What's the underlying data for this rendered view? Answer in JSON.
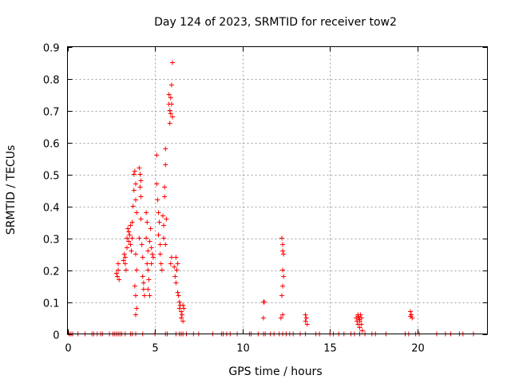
{
  "chart_data": {
    "type": "scatter",
    "title": "Day 124 of 2023, SRMTID for receiver tow2",
    "xlabel": "GPS time / hours",
    "ylabel": "SRMTID / TECUs",
    "xlim": [
      0,
      24
    ],
    "ylim": [
      0,
      0.9
    ],
    "xticks": [
      0,
      5,
      10,
      15,
      20
    ],
    "yticks": [
      0,
      0.1,
      0.2,
      0.3,
      0.4,
      0.5,
      0.6,
      0.7,
      0.8,
      0.9
    ],
    "xtick_labels": [
      "0",
      "5",
      "10",
      "15",
      "20"
    ],
    "ytick_labels": [
      "0",
      "0.1",
      "0.2",
      "0.3",
      "0.4",
      "0.5",
      "0.6",
      "0.7",
      "0.8",
      "0.9"
    ],
    "grid": true,
    "marker": "plus",
    "color": "#ff0000",
    "series": [
      {
        "name": "SRMTID",
        "points": [
          [
            0.1,
            0
          ],
          [
            0.2,
            0
          ],
          [
            0.3,
            0
          ],
          [
            0.6,
            0
          ],
          [
            1.0,
            0
          ],
          [
            1.4,
            0
          ],
          [
            1.5,
            0
          ],
          [
            1.7,
            0
          ],
          [
            1.9,
            0
          ],
          [
            2.0,
            0
          ],
          [
            2.4,
            0
          ],
          [
            2.6,
            0
          ],
          [
            2.7,
            0
          ],
          [
            2.8,
            0
          ],
          [
            2.9,
            0
          ],
          [
            3.0,
            0
          ],
          [
            3.1,
            0
          ],
          [
            3.3,
            0
          ],
          [
            3.6,
            0
          ],
          [
            3.7,
            0
          ],
          [
            3.9,
            0
          ],
          [
            4.3,
            0
          ],
          [
            5.0,
            0
          ],
          [
            5.6,
            0
          ],
          [
            5.7,
            0
          ],
          [
            6.2,
            0
          ],
          [
            6.4,
            0
          ],
          [
            6.5,
            0
          ],
          [
            6.6,
            0
          ],
          [
            6.8,
            0
          ],
          [
            7.2,
            0
          ],
          [
            7.5,
            0
          ],
          [
            8.3,
            0
          ],
          [
            8.8,
            0
          ],
          [
            8.9,
            0
          ],
          [
            9.1,
            0
          ],
          [
            9.3,
            0
          ],
          [
            9.7,
            0
          ],
          [
            10.4,
            0
          ],
          [
            10.5,
            0
          ],
          [
            10.9,
            0
          ],
          [
            11.2,
            0
          ],
          [
            11.3,
            0
          ],
          [
            11.6,
            0
          ],
          [
            11.8,
            0
          ],
          [
            12.1,
            0
          ],
          [
            12.3,
            0
          ],
          [
            12.5,
            0
          ],
          [
            12.7,
            0
          ],
          [
            12.9,
            0
          ],
          [
            13.3,
            0
          ],
          [
            13.6,
            0
          ],
          [
            14.2,
            0
          ],
          [
            14.4,
            0
          ],
          [
            15.0,
            0
          ],
          [
            15.2,
            0
          ],
          [
            15.5,
            0
          ],
          [
            15.8,
            0
          ],
          [
            16.2,
            0
          ],
          [
            16.4,
            0
          ],
          [
            16.7,
            0
          ],
          [
            17.0,
            0
          ],
          [
            17.4,
            0
          ],
          [
            17.6,
            0
          ],
          [
            18.2,
            0
          ],
          [
            19.3,
            0
          ],
          [
            19.5,
            0
          ],
          [
            19.9,
            0
          ],
          [
            20.1,
            0
          ],
          [
            21.1,
            0
          ],
          [
            21.6,
            0
          ],
          [
            21.9,
            0
          ],
          [
            22.4,
            0
          ],
          [
            22.6,
            0
          ],
          [
            23.2,
            0
          ],
          [
            2.8,
            0.19
          ],
          [
            2.85,
            0.18
          ],
          [
            2.9,
            0.2
          ],
          [
            2.95,
            0.17
          ],
          [
            2.9,
            0.22
          ],
          [
            3.2,
            0.23
          ],
          [
            3.25,
            0.25
          ],
          [
            3.3,
            0.24
          ],
          [
            3.3,
            0.22
          ],
          [
            3.35,
            0.2
          ],
          [
            3.4,
            0.27
          ],
          [
            3.4,
            0.3
          ],
          [
            3.45,
            0.33
          ],
          [
            3.5,
            0.32
          ],
          [
            3.5,
            0.29
          ],
          [
            3.55,
            0.31
          ],
          [
            3.6,
            0.34
          ],
          [
            3.6,
            0.28
          ],
          [
            3.65,
            0.26
          ],
          [
            3.7,
            0.3
          ],
          [
            3.7,
            0.35
          ],
          [
            3.75,
            0.4
          ],
          [
            3.8,
            0.45
          ],
          [
            3.8,
            0.5
          ],
          [
            3.85,
            0.51
          ],
          [
            3.9,
            0.47
          ],
          [
            3.9,
            0.42
          ],
          [
            3.95,
            0.38
          ],
          [
            3.9,
            0.25
          ],
          [
            3.95,
            0.2
          ],
          [
            3.85,
            0.15
          ],
          [
            3.9,
            0.12
          ],
          [
            3.95,
            0.08
          ],
          [
            3.9,
            0.06
          ],
          [
            4.1,
            0.52
          ],
          [
            4.15,
            0.5
          ],
          [
            4.2,
            0.48
          ],
          [
            4.15,
            0.46
          ],
          [
            4.2,
            0.43
          ],
          [
            4.1,
            0.3
          ],
          [
            4.2,
            0.36
          ],
          [
            4.25,
            0.28
          ],
          [
            4.3,
            0.24
          ],
          [
            4.3,
            0.18
          ],
          [
            4.35,
            0.14
          ],
          [
            4.4,
            0.12
          ],
          [
            4.35,
            0.16
          ],
          [
            4.5,
            0.38
          ],
          [
            4.55,
            0.35
          ],
          [
            4.5,
            0.3
          ],
          [
            4.6,
            0.26
          ],
          [
            4.55,
            0.22
          ],
          [
            4.6,
            0.2
          ],
          [
            4.65,
            0.17
          ],
          [
            4.6,
            0.14
          ],
          [
            4.7,
            0.12
          ],
          [
            4.7,
            0.29
          ],
          [
            4.75,
            0.33
          ],
          [
            4.8,
            0.27
          ],
          [
            4.85,
            0.25
          ],
          [
            4.8,
            0.22
          ],
          [
            4.9,
            0.24
          ],
          [
            5.1,
            0.56
          ],
          [
            5.1,
            0.47
          ],
          [
            5.15,
            0.42
          ],
          [
            5.2,
            0.38
          ],
          [
            5.25,
            0.35
          ],
          [
            5.2,
            0.31
          ],
          [
            5.3,
            0.28
          ],
          [
            5.3,
            0.25
          ],
          [
            5.35,
            0.22
          ],
          [
            5.4,
            0.2
          ],
          [
            5.45,
            0.37
          ],
          [
            5.5,
            0.34
          ],
          [
            5.5,
            0.3
          ],
          [
            5.55,
            0.43
          ],
          [
            5.55,
            0.46
          ],
          [
            5.6,
            0.53
          ],
          [
            5.6,
            0.58
          ],
          [
            5.65,
            0.36
          ],
          [
            5.6,
            0.28
          ],
          [
            5.8,
            0.75
          ],
          [
            5.8,
            0.72
          ],
          [
            5.85,
            0.7
          ],
          [
            5.85,
            0.66
          ],
          [
            5.9,
            0.69
          ],
          [
            5.9,
            0.74
          ],
          [
            5.95,
            0.78
          ],
          [
            6.0,
            0.85
          ],
          [
            5.95,
            0.72
          ],
          [
            6.0,
            0.68
          ],
          [
            5.9,
            0.22
          ],
          [
            5.95,
            0.24
          ],
          [
            6.1,
            0.21
          ],
          [
            6.15,
            0.18
          ],
          [
            6.2,
            0.16
          ],
          [
            6.2,
            0.24
          ],
          [
            6.25,
            0.2
          ],
          [
            6.3,
            0.22
          ],
          [
            6.3,
            0.13
          ],
          [
            6.35,
            0.12
          ],
          [
            6.4,
            0.1
          ],
          [
            6.4,
            0.08
          ],
          [
            6.45,
            0.09
          ],
          [
            6.5,
            0.07
          ],
          [
            6.5,
            0.05
          ],
          [
            6.55,
            0.06
          ],
          [
            6.6,
            0.04
          ],
          [
            6.6,
            0.09
          ],
          [
            6.65,
            0.08
          ],
          [
            11.2,
            0.1
          ],
          [
            11.25,
            0.1
          ],
          [
            11.2,
            0.05
          ],
          [
            12.2,
            0.05
          ],
          [
            12.25,
            0.3
          ],
          [
            12.3,
            0.28
          ],
          [
            12.3,
            0.26
          ],
          [
            12.35,
            0.25
          ],
          [
            12.3,
            0.2
          ],
          [
            12.35,
            0.18
          ],
          [
            12.3,
            0.15
          ],
          [
            12.25,
            0.12
          ],
          [
            12.3,
            0.06
          ],
          [
            13.6,
            0.06
          ],
          [
            13.65,
            0.05
          ],
          [
            13.6,
            0.04
          ],
          [
            13.7,
            0.03
          ],
          [
            16.5,
            0.05
          ],
          [
            16.55,
            0.04
          ],
          [
            16.6,
            0.06
          ],
          [
            16.6,
            0.03
          ],
          [
            16.65,
            0.05
          ],
          [
            16.7,
            0.02
          ],
          [
            16.7,
            0.04
          ],
          [
            16.75,
            0.06
          ],
          [
            16.8,
            0.03
          ],
          [
            16.8,
            0.05
          ],
          [
            16.85,
            0.01
          ],
          [
            16.6,
            0.055
          ],
          [
            16.7,
            0.045
          ],
          [
            19.6,
            0.07
          ],
          [
            19.65,
            0.06
          ],
          [
            19.7,
            0.05
          ],
          [
            19.6,
            0.055
          ]
        ]
      }
    ]
  }
}
